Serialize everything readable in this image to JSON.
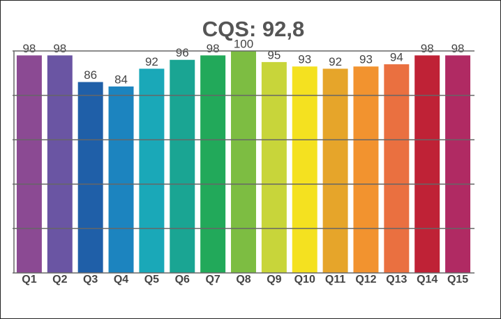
{
  "chart_data": {
    "type": "bar",
    "title": "CQS: 92,8",
    "categories": [
      "Q1",
      "Q2",
      "Q3",
      "Q4",
      "Q5",
      "Q6",
      "Q7",
      "Q8",
      "Q9",
      "Q10",
      "Q11",
      "Q12",
      "Q13",
      "Q14",
      "Q15"
    ],
    "values": [
      98,
      98,
      86,
      84,
      92,
      96,
      98,
      100,
      95,
      93,
      92,
      93,
      94,
      98,
      98
    ],
    "colors": [
      "#8b4a93",
      "#6a55a3",
      "#1f5fa8",
      "#1c84bf",
      "#1aa8b8",
      "#1aa593",
      "#22a95a",
      "#7dbd42",
      "#c8d53a",
      "#f4e120",
      "#e6a52a",
      "#f2932f",
      "#ea7040",
      "#bf2236",
      "#b02a63"
    ],
    "ylim": [
      0,
      100
    ],
    "yticks": [
      0,
      20,
      40,
      60,
      80,
      100
    ],
    "grid": true
  }
}
